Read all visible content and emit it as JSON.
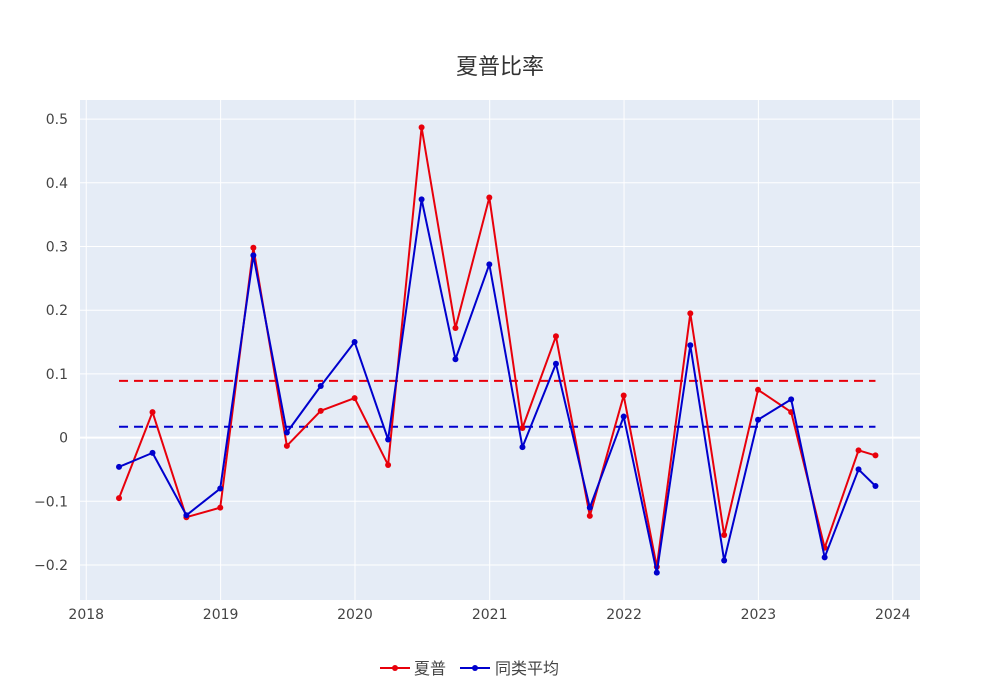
{
  "chart_data": {
    "type": "line",
    "title": "夏普比率",
    "xlabel": "",
    "ylabel": "",
    "xlim": [
      "2017-12-15",
      "2024-03-15"
    ],
    "ylim": [
      -0.255,
      0.53
    ],
    "x_ticks": [
      "2018",
      "2019",
      "2020",
      "2021",
      "2022",
      "2023",
      "2024"
    ],
    "y_ticks": [
      -0.2,
      -0.1,
      0,
      0.1,
      0.2,
      0.3,
      0.4,
      0.5
    ],
    "y_tick_labels": [
      "−0.2",
      "−0.1",
      "0",
      "0.1",
      "0.2",
      "0.3",
      "0.4",
      "0.5"
    ],
    "grid": true,
    "legend_position": "bottom-center",
    "x": [
      "2018-03-31",
      "2018-06-30",
      "2018-09-30",
      "2018-12-31",
      "2019-03-31",
      "2019-06-30",
      "2019-09-30",
      "2019-12-31",
      "2020-03-31",
      "2020-06-30",
      "2020-09-30",
      "2020-12-31",
      "2021-03-31",
      "2021-06-30",
      "2021-09-30",
      "2021-12-31",
      "2022-03-31",
      "2022-06-30",
      "2022-09-30",
      "2022-12-31",
      "2023-03-31",
      "2023-06-30",
      "2023-09-30",
      "2023-11-15"
    ],
    "series": [
      {
        "name": "夏普",
        "color": "#e8000b",
        "values": [
          -0.095,
          0.04,
          -0.125,
          -0.11,
          0.298,
          -0.013,
          0.042,
          0.062,
          -0.043,
          0.487,
          0.172,
          0.377,
          0.015,
          0.159,
          -0.123,
          0.066,
          -0.203,
          0.195,
          -0.153,
          0.075,
          0.04,
          -0.173,
          -0.02,
          -0.028
        ]
      },
      {
        "name": "同类平均",
        "color": "#0000cd",
        "values": [
          -0.046,
          -0.024,
          -0.122,
          -0.08,
          0.286,
          0.008,
          0.081,
          0.15,
          -0.003,
          0.374,
          0.123,
          0.272,
          -0.015,
          0.116,
          -0.11,
          0.033,
          -0.212,
          0.145,
          -0.193,
          0.028,
          0.06,
          -0.188,
          -0.05,
          -0.076
        ]
      }
    ],
    "reference_lines": [
      {
        "color": "#e8000b",
        "value": 0.089,
        "style": "dash"
      },
      {
        "color": "#0000cd",
        "value": 0.017,
        "style": "dash"
      }
    ],
    "colors": {
      "plot_background": "#e5ecf6",
      "grid": "#ffffff"
    }
  }
}
